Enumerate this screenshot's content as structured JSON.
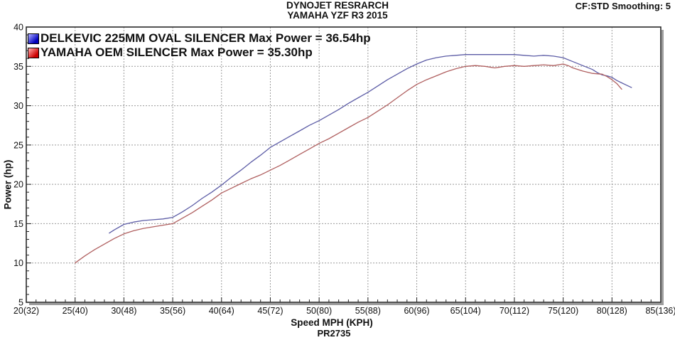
{
  "header": {
    "title_line1": "DYNOJET RESRARCH",
    "title_line2": "YAMAHA YZF R3 2015",
    "smoothing": "CF:STD Smoothing: 5"
  },
  "footer": {
    "plot_id": "PR2735"
  },
  "legend": [
    {
      "label": "DELKEVIC 225MM OVAL SILENCER Max Power = 36.54hp",
      "swatch_light": "#9b9bff",
      "swatch_dark": "#0000bb"
    },
    {
      "label": "YAMAHA OEM SILENCER Max Power = 35.30hp",
      "swatch_light": "#ff9b9b",
      "swatch_dark": "#cc0000"
    }
  ],
  "chart_data": {
    "type": "line",
    "title": "DYNOJET RESRARCH — YAMAHA YZF R3 2015",
    "xlabel": "Speed MPH (KPH)",
    "ylabel": "Power (hp)",
    "xlim": [
      20,
      85
    ],
    "ylim": [
      5,
      40
    ],
    "x_major_ticks": [
      20,
      25,
      30,
      35,
      40,
      45,
      50,
      55,
      60,
      65,
      70,
      75,
      80,
      85
    ],
    "x_tick_labels": [
      "20(32)",
      "25(40)",
      "30(48)",
      "35(56)",
      "40(64)",
      "45(72)",
      "50(80)",
      "55(88)",
      "60(96)",
      "65(104)",
      "70(112)",
      "75(120)",
      "80(128)",
      "85(136)"
    ],
    "y_major_ticks": [
      5,
      10,
      15,
      20,
      25,
      30,
      35,
      40
    ],
    "y_tick_labels": [
      "5",
      "10",
      "15",
      "20",
      "25",
      "30",
      "35",
      "40"
    ],
    "x_minor_step": 1,
    "y_minor_step": 1,
    "grid": "major-both-dashed",
    "grid_color": "#9a9a9a",
    "frame_color": "#2a2a2a",
    "series": [
      {
        "name": "DELKEVIC 225MM OVAL SILENCER",
        "max_power_hp": 36.54,
        "color": "#5d5da6",
        "points": [
          [
            28.5,
            13.8
          ],
          [
            29,
            14.2
          ],
          [
            30,
            14.9
          ],
          [
            31,
            15.2
          ],
          [
            32,
            15.4
          ],
          [
            33,
            15.5
          ],
          [
            34,
            15.6
          ],
          [
            35,
            15.8
          ],
          [
            36,
            16.5
          ],
          [
            37,
            17.3
          ],
          [
            38,
            18.2
          ],
          [
            39,
            19.0
          ],
          [
            40,
            19.9
          ],
          [
            41,
            20.9
          ],
          [
            42,
            21.8
          ],
          [
            43,
            22.8
          ],
          [
            44,
            23.7
          ],
          [
            45,
            24.7
          ],
          [
            46,
            25.4
          ],
          [
            47,
            26.1
          ],
          [
            48,
            26.8
          ],
          [
            49,
            27.5
          ],
          [
            50,
            28.1
          ],
          [
            51,
            28.8
          ],
          [
            52,
            29.5
          ],
          [
            53,
            30.3
          ],
          [
            54,
            31.0
          ],
          [
            55,
            31.7
          ],
          [
            56,
            32.5
          ],
          [
            57,
            33.3
          ],
          [
            58,
            34.0
          ],
          [
            59,
            34.7
          ],
          [
            60,
            35.3
          ],
          [
            61,
            35.8
          ],
          [
            62,
            36.1
          ],
          [
            63,
            36.3
          ],
          [
            64,
            36.4
          ],
          [
            65,
            36.5
          ],
          [
            66,
            36.5
          ],
          [
            67,
            36.5
          ],
          [
            68,
            36.5
          ],
          [
            69,
            36.5
          ],
          [
            70,
            36.5
          ],
          [
            71,
            36.4
          ],
          [
            72,
            36.3
          ],
          [
            73,
            36.4
          ],
          [
            74,
            36.3
          ],
          [
            75,
            36.1
          ],
          [
            76,
            35.6
          ],
          [
            77,
            35.1
          ],
          [
            78,
            34.6
          ],
          [
            78.5,
            34.2
          ],
          [
            79,
            33.9
          ],
          [
            79.5,
            33.8
          ],
          [
            80,
            33.6
          ],
          [
            80.5,
            33.2
          ],
          [
            81,
            32.9
          ],
          [
            81.5,
            32.6
          ],
          [
            82,
            32.3
          ]
        ]
      },
      {
        "name": "YAMAHA OEM SILENCER",
        "max_power_hp": 35.3,
        "color": "#b06060",
        "points": [
          [
            25,
            10.0
          ],
          [
            26,
            10.9
          ],
          [
            27,
            11.7
          ],
          [
            28,
            12.4
          ],
          [
            29,
            13.1
          ],
          [
            30,
            13.7
          ],
          [
            31,
            14.1
          ],
          [
            32,
            14.4
          ],
          [
            33,
            14.6
          ],
          [
            34,
            14.8
          ],
          [
            35,
            15.0
          ],
          [
            36,
            15.7
          ],
          [
            37,
            16.4
          ],
          [
            38,
            17.2
          ],
          [
            39,
            18.0
          ],
          [
            40,
            18.9
          ],
          [
            41,
            19.5
          ],
          [
            42,
            20.1
          ],
          [
            43,
            20.7
          ],
          [
            44,
            21.2
          ],
          [
            45,
            21.8
          ],
          [
            46,
            22.4
          ],
          [
            47,
            23.1
          ],
          [
            48,
            23.8
          ],
          [
            49,
            24.5
          ],
          [
            50,
            25.2
          ],
          [
            51,
            25.8
          ],
          [
            52,
            26.5
          ],
          [
            53,
            27.2
          ],
          [
            54,
            27.9
          ],
          [
            55,
            28.5
          ],
          [
            56,
            29.3
          ],
          [
            57,
            30.1
          ],
          [
            58,
            31.0
          ],
          [
            59,
            31.9
          ],
          [
            60,
            32.7
          ],
          [
            61,
            33.3
          ],
          [
            62,
            33.8
          ],
          [
            63,
            34.3
          ],
          [
            64,
            34.7
          ],
          [
            65,
            35.0
          ],
          [
            66,
            35.1
          ],
          [
            67,
            35.0
          ],
          [
            68,
            34.8
          ],
          [
            69,
            35.0
          ],
          [
            70,
            35.1
          ],
          [
            71,
            35.0
          ],
          [
            72,
            35.1
          ],
          [
            73,
            35.2
          ],
          [
            74,
            35.1
          ],
          [
            75,
            35.3
          ],
          [
            75.5,
            35.1
          ],
          [
            76,
            34.8
          ],
          [
            77,
            34.4
          ],
          [
            78,
            34.1
          ],
          [
            79,
            34.0
          ],
          [
            79.5,
            33.7
          ],
          [
            80,
            33.3
          ],
          [
            80.5,
            32.8
          ],
          [
            81,
            32.1
          ]
        ]
      }
    ]
  }
}
